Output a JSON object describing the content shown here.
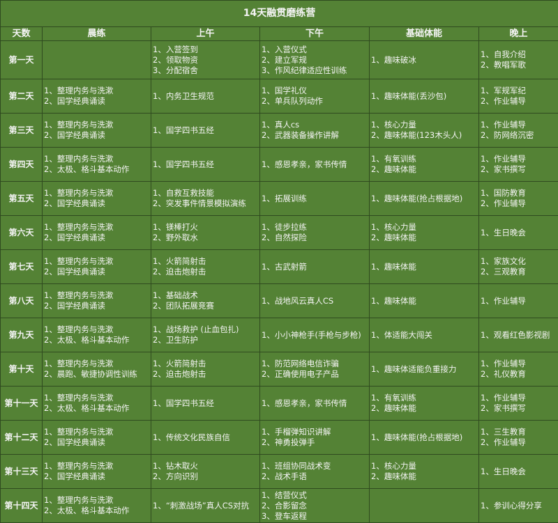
{
  "title": "14天融贯磨练营",
  "headers": [
    "天数",
    "晨练",
    "上午",
    "下午",
    "基础体能",
    "晚上"
  ],
  "rows": [
    {
      "day": "第一天",
      "cells": [
        [],
        [
          "1、入营签到",
          "2、领取物资",
          "3、分配宿舍"
        ],
        [
          "1、入营仪式",
          "2、建立军规",
          "3、作风纪律适应性训练"
        ],
        [
          "1、趣味破冰"
        ],
        [
          "1、自我介绍",
          "2、教唱军歌"
        ]
      ]
    },
    {
      "day": "第二天",
      "cells": [
        [
          "1、整理内务与洗漱",
          "2、国学经典诵读"
        ],
        [
          "1、内务卫生规范"
        ],
        [
          "1、国学礼仪",
          "2、单兵队列动作"
        ],
        [
          "1、趣味体能(丢沙包)"
        ],
        [
          "1、军规军纪",
          "2、作业辅导"
        ]
      ]
    },
    {
      "day": "第三天",
      "cells": [
        [
          "1、整理内务与洗漱",
          "2、国学经典诵读"
        ],
        [
          "1、国学四书五经"
        ],
        [
          "1、真人cs",
          "2、武器装备操作讲解"
        ],
        [
          "1、核心力量",
          "2、趣味体能(123木头人)"
        ],
        [
          "1、作业辅导",
          "2、防网络沉密"
        ]
      ]
    },
    {
      "day": "第四天",
      "cells": [
        [
          "1、整理内务与洗漱",
          "2、太极、格斗基本动作"
        ],
        [
          "1、国学四书五经"
        ],
        [
          "1、感恩孝亲，家书传情"
        ],
        [
          "1、有氧训练",
          "2、趣味体能"
        ],
        [
          "1、作业辅导",
          "2、家书撰写"
        ]
      ]
    },
    {
      "day": "第五天",
      "cells": [
        [
          "1、整理内务与洗漱",
          "2、国学经典诵读"
        ],
        [
          "1、自救互救技能",
          "2、突发事件情景模拟演练"
        ],
        [
          "1、拓展训练"
        ],
        [
          "1、趣味体能(抢占根据地)"
        ],
        [
          "1、国防教育",
          "2、作业辅导"
        ]
      ]
    },
    {
      "day": "第六天",
      "cells": [
        [
          "1、整理内务与洗漱",
          "2、国学经典诵读"
        ],
        [
          "1、镁棒打火",
          "2、野外取水"
        ],
        [
          "1、徒步拉练",
          "2、自然探险"
        ],
        [
          "1、核心力量",
          "2、趣味体能"
        ],
        [
          "1、生日晚会"
        ]
      ]
    },
    {
      "day": "第七天",
      "cells": [
        [
          "1、整理内务与洗漱",
          "2、国学经典诵读"
        ],
        [
          "1、火箭简射击",
          "2、迫击炮射击"
        ],
        [
          "1、古武射箭"
        ],
        [
          "1、趣味体能"
        ],
        [
          "1、家族文化",
          "2、三观教育"
        ]
      ]
    },
    {
      "day": "第八天",
      "cells": [
        [
          "1、整理内务与洗漱",
          "2、国学经典诵读"
        ],
        [
          "1、基础战术",
          "2、团队拓展竞赛"
        ],
        [
          "1、战地风云真人CS"
        ],
        [
          "1、趣味体能"
        ],
        [
          "1、作业辅导"
        ]
      ]
    },
    {
      "day": "第九天",
      "cells": [
        [
          "1、整理内务与洗漱",
          "2、太极、格斗基本动作"
        ],
        [
          "1、战场救护 (止血包扎)",
          "2、卫生防护"
        ],
        [
          "1、小小神枪手(手枪与步枪)"
        ],
        [
          "1、体适能大闯关"
        ],
        [
          "1、观看红色影视剧"
        ]
      ]
    },
    {
      "day": "第十天",
      "cells": [
        [
          "1、整理内务与洗漱",
          "2、晨跑、敏捷协调性训练"
        ],
        [
          "1、火箭简射击",
          "2、迫击炮射击"
        ],
        [
          "1、防范网络电信诈骗",
          "2、正确使用电子产品"
        ],
        [
          "1、趣味体适能负重接力"
        ],
        [
          "1、作业辅导",
          "2、礼仪教育"
        ]
      ]
    },
    {
      "day": "第十一天",
      "cells": [
        [
          "1、整理内务与洗漱",
          "2、太极、格斗基本动作"
        ],
        [
          "1、国学四书五经"
        ],
        [
          "1、感恩孝亲，家书传情"
        ],
        [
          "1、有氧训练",
          "2、趣味体能"
        ],
        [
          "1、作业辅导",
          "2、家书撰写"
        ]
      ]
    },
    {
      "day": "第十二天",
      "cells": [
        [
          "1、整理内务与洗漱",
          "2、国学经典诵读"
        ],
        [
          "1、传统文化民族自信"
        ],
        [
          "1、手榴弹知识讲解",
          "2、神勇投弹手"
        ],
        [
          "1、趣味体能(抢占根据地)"
        ],
        [
          "1、三生教育",
          "2、作业辅导"
        ]
      ]
    },
    {
      "day": "第十三天",
      "cells": [
        [
          "1、整理内务与洗漱",
          "2、国学经典诵读"
        ],
        [
          "1、钻木取火",
          "2、方向识别"
        ],
        [
          "1、班组协同战术变",
          "2、战术手语"
        ],
        [
          "1、核心力量",
          "2、趣味体能"
        ],
        [
          "1、生日晚会"
        ]
      ]
    },
    {
      "day": "第十四天",
      "cells": [
        [
          "1、整理内务与洗漱",
          "2、太极、格斗基本动作"
        ],
        [
          "1、“刺激战场”真人CS对抗"
        ],
        [
          "1、结营仪式",
          "2、合影留念",
          "3、登车返程"
        ],
        [],
        [
          "1、参训心得分享"
        ]
      ]
    }
  ],
  "colors": {
    "background": "#548235",
    "border": "#2f4a1f",
    "text": "#f4f4f4"
  }
}
